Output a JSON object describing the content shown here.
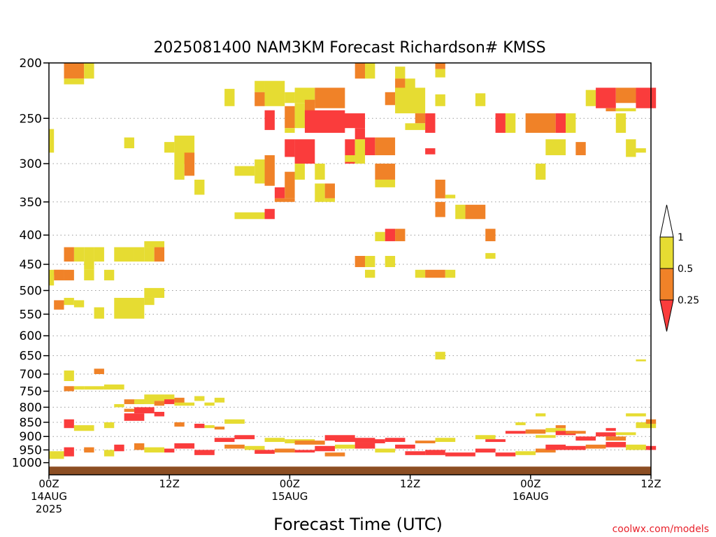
{
  "chart_data": {
    "type": "heatmap",
    "title": "2025081400 NAM3KM Forecast Richardson# KMSS",
    "xlabel": "Forecast Time (UTC)",
    "ylabel": "",
    "y_scale": "log-pressure (inverted)",
    "ylim": [
      1050,
      200
    ],
    "xlim_hours": [
      0,
      60
    ],
    "y_ticks": [
      200,
      250,
      300,
      350,
      400,
      450,
      500,
      550,
      600,
      650,
      700,
      750,
      800,
      850,
      900,
      950,
      1000
    ],
    "x_ticks": [
      {
        "hour": 0,
        "lines": [
          "00Z",
          "14AUG",
          "2025"
        ]
      },
      {
        "hour": 12,
        "lines": [
          "12Z"
        ]
      },
      {
        "hour": 24,
        "lines": [
          "00Z",
          "15AUG"
        ]
      },
      {
        "hour": 36,
        "lines": [
          "12Z"
        ]
      },
      {
        "hour": 48,
        "lines": [
          "00Z",
          "16AUG"
        ]
      },
      {
        "hour": 60,
        "lines": [
          "12Z"
        ]
      }
    ],
    "grid": "dotted horizontal at pressure ticks",
    "ground_level_hpa": 1016,
    "colors": {
      "lt_0.25": "#fa3c3c",
      "0.25_0.5": "#f08228",
      "0.5_1": "#e6dc32",
      "ground": "#8c4e23"
    },
    "colorbar": {
      "labels": [
        "1",
        "0.5",
        "0.25"
      ],
      "placement": "right"
    },
    "legend": [
      {
        "range": "< 0.25",
        "color": "#fa3c3c"
      },
      {
        "range": "0.25 - 0.5",
        "color": "#f08228"
      },
      {
        "range": "0.5 - 1",
        "color": "#e6dc32"
      }
    ],
    "cells_note": "each cell: [hour_start, hour_end, p_top_hPa, p_bottom_hPa, category] with category 1=<0.25, 2=0.25-0.5, 3=0.5-1",
    "cells": [
      [
        1.5,
        3.5,
        200,
        213,
        2
      ],
      [
        3.5,
        4.5,
        200,
        213,
        3
      ],
      [
        1.5,
        3.5,
        213,
        218,
        3
      ],
      [
        0,
        0.5,
        261,
        287,
        3
      ],
      [
        7.5,
        8.5,
        270,
        282,
        3
      ],
      [
        11.5,
        12.5,
        275,
        287,
        3
      ],
      [
        12.5,
        14.5,
        268,
        300,
        3
      ],
      [
        12.5,
        13.5,
        300,
        320,
        3
      ],
      [
        13.5,
        14.5,
        287,
        315,
        2
      ],
      [
        14.5,
        15.5,
        320,
        340,
        3
      ],
      [
        17.5,
        18.5,
        222,
        238,
        3
      ],
      [
        18.5,
        20.5,
        303,
        315,
        3
      ],
      [
        20.5,
        21.5,
        295,
        325,
        3
      ],
      [
        21.5,
        22.5,
        290,
        328,
        2
      ],
      [
        20.5,
        21.5,
        215,
        225,
        3
      ],
      [
        20.5,
        21.5,
        225,
        238,
        2
      ],
      [
        21.5,
        23.5,
        215,
        238,
        3
      ],
      [
        21.5,
        22.5,
        242,
        262,
        1
      ],
      [
        23.5,
        24.5,
        238,
        260,
        2
      ],
      [
        23.5,
        24.5,
        260,
        265,
        3
      ],
      [
        24.5,
        26.5,
        221,
        235,
        3
      ],
      [
        24.5,
        25.5,
        235,
        260,
        3
      ],
      [
        25.5,
        26.5,
        232,
        250,
        2
      ],
      [
        26.5,
        29.5,
        221,
        240,
        2
      ],
      [
        25.5,
        29.5,
        242,
        265,
        1
      ],
      [
        23.5,
        24.5,
        272,
        292,
        1
      ],
      [
        24.5,
        26.5,
        272,
        300,
        1
      ],
      [
        22.5,
        23.5,
        330,
        345,
        1
      ],
      [
        23.5,
        24.5,
        310,
        345,
        2
      ],
      [
        22.5,
        24.5,
        345,
        350,
        2
      ],
      [
        24.5,
        25.5,
        300,
        320,
        3
      ],
      [
        26.5,
        27.5,
        300,
        320,
        3
      ],
      [
        26.5,
        27.5,
        325,
        350,
        3
      ],
      [
        27.5,
        28.5,
        325,
        345,
        2
      ],
      [
        27.5,
        28.5,
        345,
        350,
        3
      ],
      [
        29.5,
        30.5,
        272,
        300,
        1
      ],
      [
        30.5,
        31.5,
        272,
        300,
        3
      ],
      [
        31.5,
        32.5,
        270,
        290,
        1
      ],
      [
        29.5,
        30.5,
        290,
        298,
        3
      ],
      [
        28.5,
        31.5,
        245,
        260,
        1
      ],
      [
        30.5,
        31.5,
        260,
        272,
        1
      ],
      [
        32.5,
        34.5,
        270,
        290,
        2
      ],
      [
        32.5,
        34.5,
        300,
        320,
        2
      ],
      [
        32.5,
        34.5,
        320,
        330,
        3
      ],
      [
        18.5,
        21.5,
        365,
        375,
        3
      ],
      [
        21.5,
        22.5,
        360,
        375,
        1
      ],
      [
        30.5,
        31.5,
        435,
        455,
        2
      ],
      [
        31.5,
        32.5,
        435,
        455,
        3
      ],
      [
        31.5,
        32.5,
        460,
        475,
        3
      ],
      [
        32.5,
        33.5,
        395,
        410,
        3
      ],
      [
        33.5,
        34.5,
        390,
        410,
        1
      ],
      [
        34.5,
        35.5,
        390,
        410,
        2
      ],
      [
        33.5,
        34.5,
        435,
        455,
        3
      ],
      [
        30.5,
        31.5,
        200,
        213,
        2
      ],
      [
        31.5,
        32.5,
        200,
        213,
        3
      ],
      [
        33.5,
        34.5,
        225,
        237,
        2
      ],
      [
        34.5,
        35.5,
        203,
        213,
        3
      ],
      [
        34.5,
        35.5,
        213,
        225,
        2
      ],
      [
        34.5,
        37.5,
        221,
        245,
        3
      ],
      [
        35.5,
        36.5,
        213,
        225,
        3
      ],
      [
        36.5,
        37.5,
        245,
        255,
        2
      ],
      [
        35.5,
        37.5,
        255,
        262,
        3
      ],
      [
        37.5,
        38.5,
        245,
        265,
        1
      ],
      [
        38.5,
        39.5,
        200,
        205,
        2
      ],
      [
        38.5,
        39.5,
        205,
        212,
        3
      ],
      [
        38.5,
        39.5,
        227,
        238,
        3
      ],
      [
        38.5,
        39.5,
        320,
        345,
        2
      ],
      [
        39.5,
        40.5,
        340,
        345,
        3
      ],
      [
        38.5,
        39.5,
        350,
        372,
        2
      ],
      [
        37.5,
        38.5,
        282,
        289,
        1
      ],
      [
        40.5,
        41.5,
        354,
        375,
        3
      ],
      [
        41.5,
        43.5,
        354,
        375,
        2
      ],
      [
        42.5,
        43.5,
        226,
        238,
        3
      ],
      [
        43.5,
        44.5,
        390,
        410,
        2
      ],
      [
        43.5,
        44.5,
        430,
        440,
        3
      ],
      [
        36.5,
        37.5,
        460,
        475,
        3
      ],
      [
        37.5,
        39.5,
        460,
        475,
        2
      ],
      [
        39.5,
        40.5,
        460,
        475,
        3
      ],
      [
        44.5,
        45.5,
        245,
        265,
        1
      ],
      [
        45.5,
        46.5,
        245,
        265,
        3
      ],
      [
        47.5,
        50.5,
        245,
        265,
        2
      ],
      [
        50.5,
        51.5,
        245,
        265,
        1
      ],
      [
        51.5,
        52.5,
        245,
        265,
        3
      ],
      [
        49.5,
        51.5,
        272,
        290,
        3
      ],
      [
        52.5,
        53.5,
        275,
        290,
        2
      ],
      [
        48.5,
        49.5,
        300,
        320,
        3
      ],
      [
        53.5,
        54.5,
        223,
        238,
        3
      ],
      [
        54.5,
        56.5,
        221,
        240,
        1
      ],
      [
        56.5,
        58.5,
        221,
        235,
        2
      ],
      [
        58.5,
        60.5,
        221,
        240,
        1
      ],
      [
        55.5,
        56.5,
        240,
        243,
        2
      ],
      [
        56.5,
        58.5,
        240,
        243,
        3
      ],
      [
        56.5,
        57.5,
        245,
        265,
        3
      ],
      [
        57.5,
        58.5,
        272,
        292,
        3
      ],
      [
        58.5,
        59.5,
        282,
        287,
        3
      ],
      [
        2.5,
        3.5,
        420,
        445,
        3
      ],
      [
        3.5,
        4.5,
        420,
        460,
        3
      ],
      [
        1.5,
        2.5,
        420,
        445,
        2
      ],
      [
        4.5,
        5.5,
        420,
        445,
        3
      ],
      [
        0.5,
        1.5,
        460,
        480,
        2
      ],
      [
        1.5,
        2.5,
        460,
        480,
        2
      ],
      [
        0.5,
        1.5,
        460,
        470,
        2
      ],
      [
        0,
        0.5,
        460,
        490,
        3
      ],
      [
        3.5,
        4.5,
        460,
        480,
        3
      ],
      [
        5.5,
        6.5,
        460,
        480,
        3
      ],
      [
        6.5,
        8.5,
        420,
        445,
        3
      ],
      [
        8.5,
        9.5,
        420,
        445,
        3
      ],
      [
        9.5,
        10.5,
        420,
        445,
        3
      ],
      [
        10.5,
        11.5,
        420,
        445,
        2
      ],
      [
        9.5,
        11.5,
        410,
        420,
        3
      ],
      [
        0.5,
        1.5,
        520,
        540,
        2
      ],
      [
        1.5,
        2.5,
        515,
        530,
        3
      ],
      [
        2.5,
        3.5,
        520,
        535,
        3
      ],
      [
        4.5,
        5.5,
        535,
        560,
        3
      ],
      [
        6.5,
        9.5,
        515,
        560,
        3
      ],
      [
        9.5,
        10.5,
        515,
        530,
        3
      ],
      [
        9.5,
        11.5,
        495,
        515,
        3
      ],
      [
        23.5,
        24.5,
        225,
        235,
        3
      ],
      [
        38.5,
        39.5,
        640,
        660,
        3
      ],
      [
        1.5,
        2.5,
        690,
        720,
        3
      ],
      [
        1.5,
        2.5,
        735,
        750,
        2
      ],
      [
        2.5,
        3.5,
        735,
        745,
        3
      ],
      [
        3.5,
        5.5,
        735,
        745,
        3
      ],
      [
        4.5,
        5.5,
        685,
        700,
        2
      ],
      [
        5.5,
        7.5,
        730,
        745,
        3
      ],
      [
        7.5,
        9.5,
        775,
        790,
        2
      ],
      [
        8.5,
        10.5,
        775,
        790,
        3
      ],
      [
        9.5,
        11.5,
        760,
        780,
        3
      ],
      [
        11.5,
        12.5,
        760,
        780,
        3
      ],
      [
        10.5,
        11.5,
        780,
        795,
        2
      ],
      [
        11.5,
        12.5,
        775,
        790,
        1
      ],
      [
        12.5,
        13.5,
        770,
        790,
        2
      ],
      [
        12.5,
        14.5,
        785,
        795,
        3
      ],
      [
        14.5,
        15.5,
        765,
        780,
        3
      ],
      [
        15.5,
        16.5,
        785,
        795,
        3
      ],
      [
        16.5,
        17.5,
        770,
        785,
        3
      ],
      [
        58.5,
        59.5,
        660,
        665,
        3
      ],
      [
        6.5,
        7.5,
        790,
        800,
        3
      ],
      [
        7.5,
        9.5,
        820,
        845,
        1
      ],
      [
        7.5,
        8.5,
        805,
        815,
        2
      ],
      [
        8.5,
        10.5,
        800,
        820,
        1
      ],
      [
        10.5,
        11.5,
        815,
        830,
        1
      ],
      [
        1.5,
        2.5,
        840,
        870,
        1
      ],
      [
        2.5,
        4.5,
        860,
        880,
        3
      ],
      [
        5.5,
        6.5,
        850,
        870,
        3
      ],
      [
        12.5,
        13.5,
        850,
        865,
        2
      ],
      [
        14.5,
        15.5,
        855,
        870,
        1
      ],
      [
        15.5,
        16.5,
        860,
        870,
        3
      ],
      [
        17.5,
        19.5,
        840,
        855,
        3
      ],
      [
        16.5,
        17.5,
        865,
        875,
        2
      ],
      [
        0,
        1.5,
        955,
        985,
        3
      ],
      [
        1.5,
        2.5,
        940,
        975,
        1
      ],
      [
        3.5,
        4.5,
        940,
        960,
        2
      ],
      [
        5.5,
        6.5,
        950,
        975,
        3
      ],
      [
        6.5,
        7.5,
        930,
        955,
        1
      ],
      [
        8.5,
        9.5,
        925,
        950,
        2
      ],
      [
        9.5,
        11.5,
        940,
        960,
        3
      ],
      [
        11.5,
        12.5,
        945,
        960,
        1
      ],
      [
        12.5,
        14.5,
        925,
        945,
        1
      ],
      [
        14.5,
        16.5,
        950,
        970,
        1
      ],
      [
        17.5,
        19.5,
        930,
        945,
        2
      ],
      [
        19.5,
        21.5,
        935,
        950,
        3
      ],
      [
        20.5,
        22.5,
        950,
        965,
        1
      ],
      [
        22.5,
        24.5,
        945,
        960,
        2
      ],
      [
        24.5,
        26.5,
        950,
        960,
        1
      ],
      [
        26.5,
        28.5,
        935,
        955,
        1
      ],
      [
        27.5,
        29.5,
        960,
        975,
        2
      ],
      [
        28.5,
        30.5,
        930,
        945,
        3
      ],
      [
        30.5,
        32.5,
        925,
        945,
        1
      ],
      [
        32.5,
        34.5,
        945,
        960,
        3
      ],
      [
        34.5,
        36.5,
        930,
        945,
        1
      ],
      [
        35.5,
        37.5,
        955,
        970,
        1
      ],
      [
        37.5,
        39.5,
        950,
        970,
        1
      ],
      [
        39.5,
        42.5,
        960,
        975,
        1
      ],
      [
        42.5,
        44.5,
        945,
        960,
        1
      ],
      [
        44.5,
        46.5,
        960,
        975,
        1
      ],
      [
        46.5,
        48.5,
        955,
        970,
        3
      ],
      [
        48.5,
        50.5,
        945,
        960,
        2
      ],
      [
        49.5,
        51.5,
        930,
        950,
        1
      ],
      [
        51.5,
        53.5,
        935,
        950,
        1
      ],
      [
        53.5,
        55.5,
        930,
        945,
        2
      ],
      [
        55.5,
        57.5,
        920,
        940,
        1
      ],
      [
        57.5,
        59.5,
        930,
        950,
        3
      ],
      [
        59.5,
        60.5,
        935,
        950,
        1
      ],
      [
        27.5,
        30.5,
        895,
        915,
        1
      ],
      [
        28.5,
        32.5,
        905,
        920,
        1
      ],
      [
        30.5,
        33.5,
        910,
        925,
        1
      ],
      [
        21.5,
        23.5,
        905,
        920,
        3
      ],
      [
        23.5,
        26.5,
        910,
        925,
        3
      ],
      [
        24.5,
        27.5,
        915,
        930,
        2
      ],
      [
        18.5,
        20.5,
        895,
        910,
        1
      ],
      [
        16.5,
        18.5,
        905,
        920,
        1
      ],
      [
        47.5,
        49.5,
        875,
        890,
        2
      ],
      [
        49.5,
        51.5,
        870,
        885,
        3
      ],
      [
        50.5,
        52.5,
        880,
        895,
        1
      ],
      [
        51.5,
        53.5,
        880,
        890,
        2
      ],
      [
        48.5,
        50.5,
        895,
        905,
        3
      ],
      [
        52.5,
        54.5,
        900,
        915,
        1
      ],
      [
        54.5,
        56.5,
        885,
        900,
        1
      ],
      [
        55.5,
        57.5,
        900,
        915,
        2
      ],
      [
        56.5,
        58.5,
        885,
        895,
        3
      ],
      [
        45.5,
        47.5,
        880,
        890,
        1
      ],
      [
        42.5,
        44.5,
        895,
        910,
        3
      ],
      [
        43.5,
        45.5,
        910,
        920,
        1
      ],
      [
        38.5,
        40.5,
        905,
        920,
        3
      ],
      [
        36.5,
        38.5,
        915,
        925,
        2
      ],
      [
        33.5,
        35.5,
        905,
        920,
        1
      ],
      [
        58.5,
        60.5,
        850,
        870,
        3
      ],
      [
        59.5,
        60.5,
        840,
        855,
        2
      ],
      [
        55.5,
        56.5,
        870,
        880,
        1
      ],
      [
        57.5,
        59.5,
        820,
        830,
        3
      ],
      [
        48.5,
        49.5,
        820,
        830,
        3
      ],
      [
        46.5,
        47.5,
        850,
        860,
        3
      ],
      [
        50.5,
        51.5,
        860,
        870,
        2
      ]
    ],
    "credit": "coolwx.com/models"
  }
}
